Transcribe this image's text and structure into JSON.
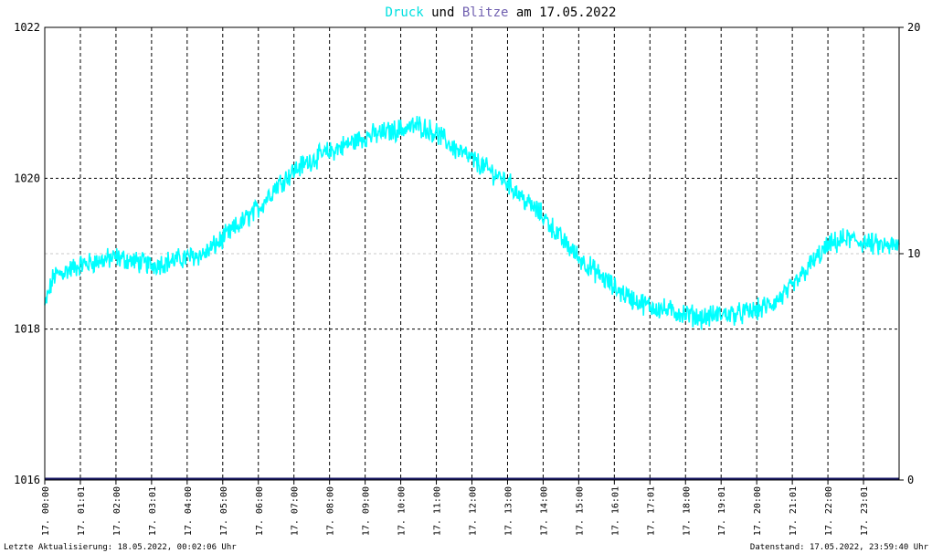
{
  "title": {
    "part1": "Druck",
    "part2": " und ",
    "part3": "Blitze",
    "part4": " am 17.05.2022"
  },
  "colors": {
    "pressure": "#00ffff",
    "lightning": "#1a1a66",
    "title_druck": "#00e0e0",
    "title_blitze": "#7060b0"
  },
  "footer": {
    "left": "Letzte Aktualisierung: 18.05.2022, 00:02:06 Uhr",
    "right": "Datenstand: 17.05.2022, 23:59:40 Uhr"
  },
  "chart_data": {
    "type": "line",
    "grid": true,
    "x_tick_labels": [
      "17. 00:00",
      "17. 01:01",
      "17. 02:00",
      "17. 03:01",
      "17. 04:00",
      "17. 05:00",
      "17. 06:00",
      "17. 07:00",
      "17. 08:00",
      "17. 09:00",
      "17. 10:00",
      "17. 11:00",
      "17. 12:00",
      "17. 13:00",
      "17. 14:00",
      "17. 15:00",
      "17. 16:01",
      "17. 17:01",
      "17. 18:00",
      "17. 19:01",
      "17. 20:00",
      "17. 21:01",
      "17. 22:00",
      "17. 23:01"
    ],
    "x_range_hours": [
      0,
      24
    ],
    "y_left": {
      "ticks": [
        "1016",
        "1018",
        "1020",
        "1022"
      ],
      "range": [
        1016,
        1022
      ]
    },
    "y_right": {
      "ticks": [
        "0",
        "10",
        "20"
      ],
      "range": [
        0,
        20
      ]
    },
    "series": [
      {
        "name": "Druck",
        "axis": "left",
        "points": [
          [
            0,
            1018.3
          ],
          [
            0.25,
            1018.7
          ],
          [
            0.5,
            1018.75
          ],
          [
            1,
            1018.85
          ],
          [
            1.5,
            1018.9
          ],
          [
            2,
            1018.95
          ],
          [
            2.5,
            1018.9
          ],
          [
            3,
            1018.85
          ],
          [
            3.5,
            1018.9
          ],
          [
            4,
            1018.95
          ],
          [
            4.5,
            1019.0
          ],
          [
            5,
            1019.2
          ],
          [
            5.5,
            1019.4
          ],
          [
            6,
            1019.6
          ],
          [
            6.5,
            1019.9
          ],
          [
            7,
            1020.1
          ],
          [
            7.5,
            1020.25
          ],
          [
            8,
            1020.35
          ],
          [
            8.5,
            1020.45
          ],
          [
            9,
            1020.55
          ],
          [
            9.5,
            1020.6
          ],
          [
            10,
            1020.65
          ],
          [
            10.5,
            1020.7
          ],
          [
            11,
            1020.6
          ],
          [
            11.5,
            1020.4
          ],
          [
            12,
            1020.25
          ],
          [
            12.5,
            1020.1
          ],
          [
            13,
            1019.95
          ],
          [
            13.5,
            1019.7
          ],
          [
            14,
            1019.5
          ],
          [
            14.5,
            1019.2
          ],
          [
            15,
            1018.95
          ],
          [
            15.5,
            1018.75
          ],
          [
            16,
            1018.55
          ],
          [
            16.5,
            1018.4
          ],
          [
            17,
            1018.3
          ],
          [
            17.5,
            1018.25
          ],
          [
            18,
            1018.2
          ],
          [
            18.5,
            1018.15
          ],
          [
            19,
            1018.2
          ],
          [
            19.5,
            1018.2
          ],
          [
            20,
            1018.25
          ],
          [
            20.5,
            1018.35
          ],
          [
            21,
            1018.55
          ],
          [
            21.5,
            1018.85
          ],
          [
            22,
            1019.1
          ],
          [
            22.5,
            1019.2
          ],
          [
            23,
            1019.15
          ],
          [
            23.5,
            1019.1
          ],
          [
            24,
            1019.1
          ]
        ]
      },
      {
        "name": "Blitze",
        "axis": "right",
        "points": [
          [
            0,
            0
          ],
          [
            24,
            0
          ]
        ]
      }
    ]
  }
}
